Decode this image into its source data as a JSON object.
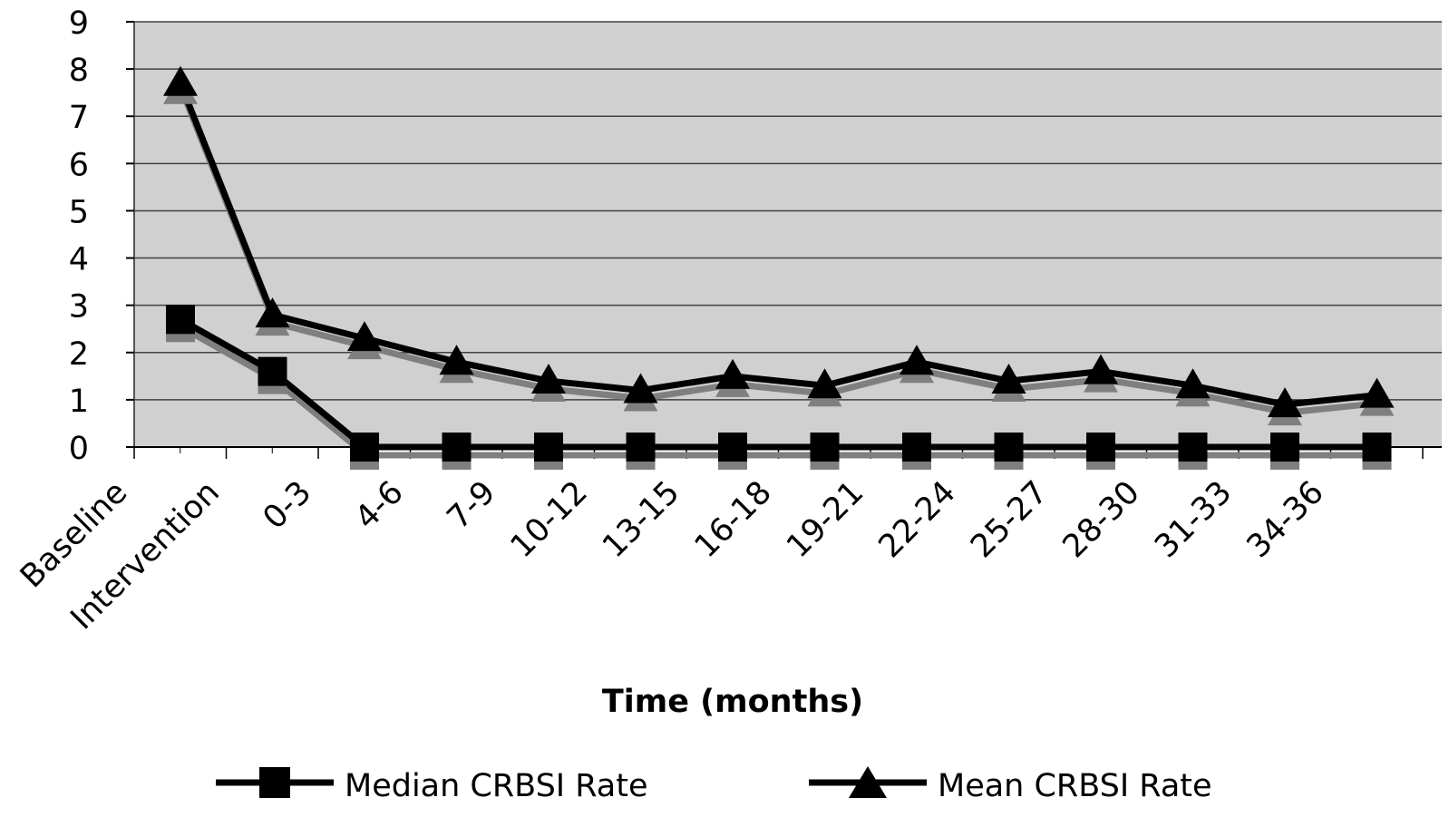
{
  "chart_data": {
    "type": "line",
    "xlabel": "Time (months)",
    "ylabel": "",
    "ylim": [
      0,
      9
    ],
    "yticks": [
      0,
      1,
      2,
      3,
      4,
      5,
      6,
      7,
      8,
      9
    ],
    "categories": [
      "Baseline",
      "Intervention",
      "0-3",
      "4-6",
      "7-9",
      "10-12",
      "13-15",
      "16-18",
      "19-21",
      "22-24",
      "25-27",
      "28-30",
      "31-33",
      "34-36"
    ],
    "grid": true,
    "legend_position": "bottom",
    "series": [
      {
        "name": "Median CRBSI Rate",
        "marker": "square",
        "values": [
          2.7,
          1.6,
          0,
          0,
          0,
          0,
          0,
          0,
          0,
          0,
          0,
          0,
          0,
          0
        ]
      },
      {
        "name": "Mean CRBSI Rate",
        "marker": "triangle",
        "values": [
          7.7,
          2.8,
          2.3,
          1.8,
          1.4,
          1.2,
          1.5,
          1.3,
          1.8,
          1.4,
          1.6,
          1.3,
          0.9,
          1.1
        ]
      }
    ],
    "colors": {
      "plot_background": "#d0d0d0",
      "line": "#000000",
      "shadow": "#7f7f7f",
      "gridline": "#404040"
    }
  }
}
